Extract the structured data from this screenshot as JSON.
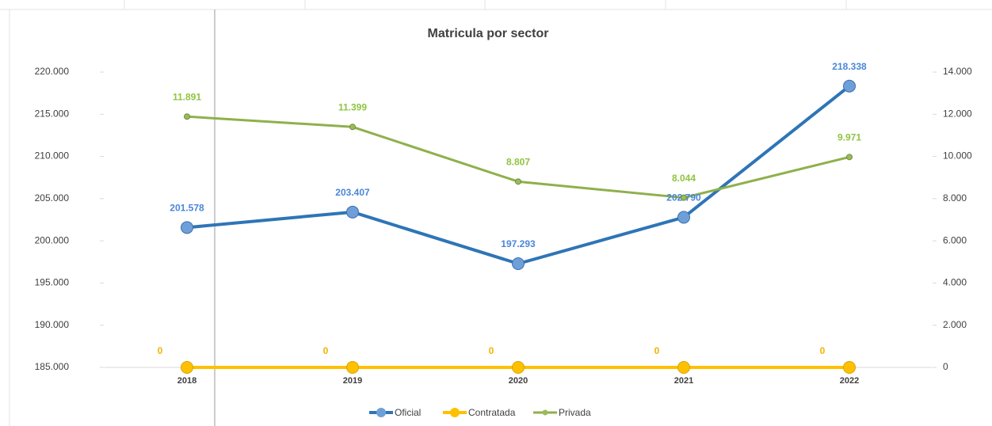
{
  "chart_data": {
    "type": "line",
    "title": "Matricula por sector",
    "categories": [
      "2018",
      "2019",
      "2020",
      "2021",
      "2022"
    ],
    "series": [
      {
        "name": "Oficial",
        "color": "#2e75b6",
        "axis": "y",
        "values": [
          201578,
          203407,
          197293,
          202790,
          218338
        ],
        "value_labels": [
          "201.578",
          "203.407",
          "197.293",
          "202.790",
          "218.338"
        ]
      },
      {
        "name": "Contratada",
        "color": "#ffc000",
        "axis": "y2",
        "values": [
          0,
          0,
          0,
          0,
          0
        ]
      },
      {
        "name": "Privada",
        "color": "#8fb04c",
        "axis": "y2",
        "values": [
          11891,
          11399,
          8807,
          8044,
          9971
        ],
        "value_labels": [
          "11.891",
          "11.399",
          "8.807",
          "8.044",
          "9.971"
        ]
      }
    ],
    "ylim": [
      185000,
      220000
    ],
    "yticks": [
      {
        "value": 185000,
        "label": "185.000"
      },
      {
        "value": 190000,
        "label": "190.000"
      },
      {
        "value": 195000,
        "label": "195.000"
      },
      {
        "value": 200000,
        "label": "200.000"
      },
      {
        "value": 205000,
        "label": "205.000"
      },
      {
        "value": 210000,
        "label": "210.000"
      },
      {
        "value": 215000,
        "label": "215.000"
      },
      {
        "value": 220000,
        "label": "220.000"
      }
    ],
    "y2lim": [
      0,
      14000
    ],
    "y2ticks": [
      0,
      {
        "value": 2000,
        "label": "2.000"
      },
      {
        "value": 4000,
        "label": "4.000"
      },
      {
        "value": 6000,
        "label": "6.000"
      },
      {
        "value": 8000,
        "label": "8.000"
      },
      {
        "value": 10000,
        "label": "10.000"
      },
      {
        "value": 12000,
        "label": "12.000"
      },
      {
        "value": 14000,
        "label": "14.000"
      }
    ],
    "legend": "bottom"
  }
}
